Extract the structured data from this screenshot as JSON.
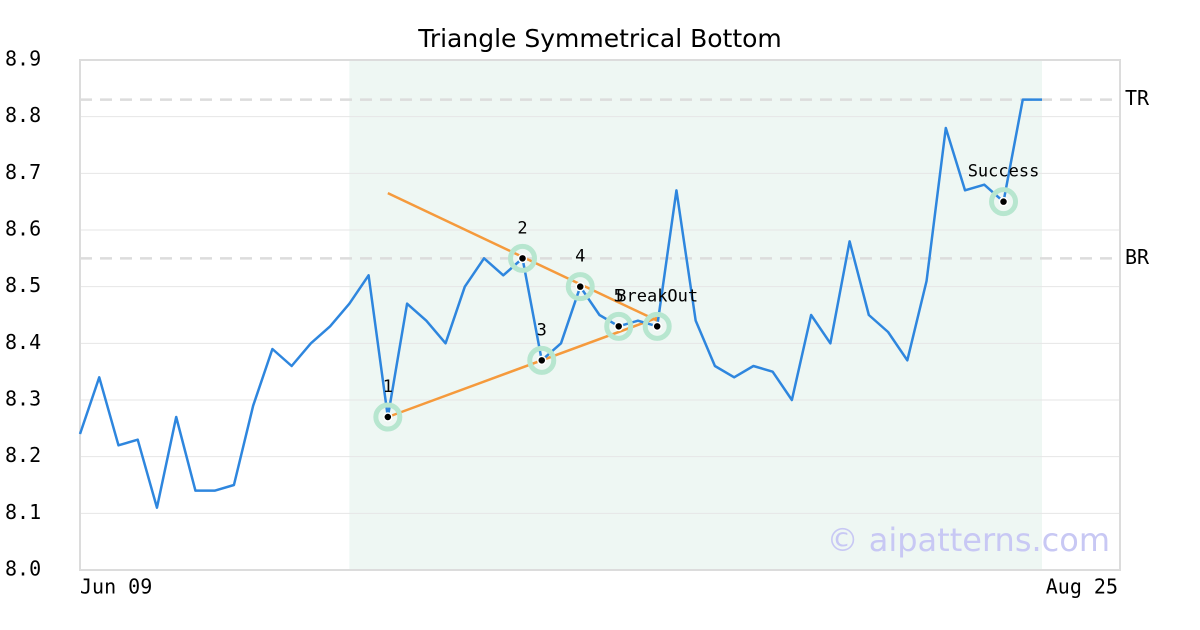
{
  "chart_data": {
    "type": "line",
    "title": "Triangle Symmetrical Bottom",
    "categories": [
      "Jun 09",
      null,
      null,
      null,
      null,
      null,
      null,
      null,
      null,
      null,
      null,
      null,
      null,
      null,
      null,
      null,
      null,
      null,
      null,
      null,
      null,
      null,
      null,
      null,
      null,
      null,
      null,
      null,
      null,
      null,
      null,
      null,
      null,
      null,
      null,
      null,
      null,
      null,
      null,
      null,
      null,
      null,
      null,
      null,
      null,
      null,
      null,
      null,
      null,
      null,
      "Aug 25"
    ],
    "series": [
      {
        "color": "#2e86de",
        "values": [
          8.24,
          8.34,
          8.22,
          8.23,
          8.11,
          8.27,
          8.14,
          8.14,
          8.15,
          8.29,
          8.39,
          8.36,
          8.4,
          8.43,
          8.47,
          8.52,
          8.27,
          8.47,
          8.44,
          8.4,
          8.5,
          8.55,
          8.52,
          8.55,
          8.37,
          8.4,
          8.5,
          8.45,
          8.43,
          8.44,
          8.43,
          8.67,
          8.44,
          8.36,
          8.34,
          8.36,
          8.35,
          8.3,
          8.45,
          8.4,
          8.58,
          8.45,
          8.42,
          8.37,
          8.51,
          8.78,
          8.67,
          8.68,
          8.65,
          8.83,
          8.83
        ]
      }
    ],
    "ylim": [
      8.0,
      8.9
    ],
    "yticks": [
      {
        "value": 8.0,
        "label": "8.0"
      },
      8.1,
      8.2,
      8.3,
      8.4,
      8.5,
      8.6,
      8.7,
      8.8,
      8.9
    ],
    "grid": true,
    "highlight": [
      14,
      50
    ],
    "levels": [
      {
        "label": "TR",
        "value": 8.83
      },
      {
        "label": "BR",
        "value": 8.55
      }
    ],
    "trendlines": [
      {
        "color": "#f59a3c",
        "points": [
          [
            16,
            8.665
          ],
          [
            30,
            8.44
          ]
        ]
      },
      {
        "color": "#f59a3c",
        "points": [
          [
            16,
            8.27
          ],
          [
            30,
            8.445
          ]
        ]
      }
    ],
    "points": [
      {
        "label": "1",
        "index": 16,
        "value": 8.27
      },
      {
        "label": "2",
        "index": 23,
        "value": 8.55
      },
      {
        "label": "3",
        "index": 24,
        "value": 8.37
      },
      {
        "label": "4",
        "index": 26,
        "value": 8.5
      },
      {
        "label": "5",
        "index": 28,
        "value": 8.43
      },
      {
        "label": "BreakOut",
        "index": 30,
        "value": 8.43
      },
      {
        "label": "Success",
        "index": 48,
        "value": 8.65
      }
    ],
    "watermark": "© aipatterns.com"
  }
}
